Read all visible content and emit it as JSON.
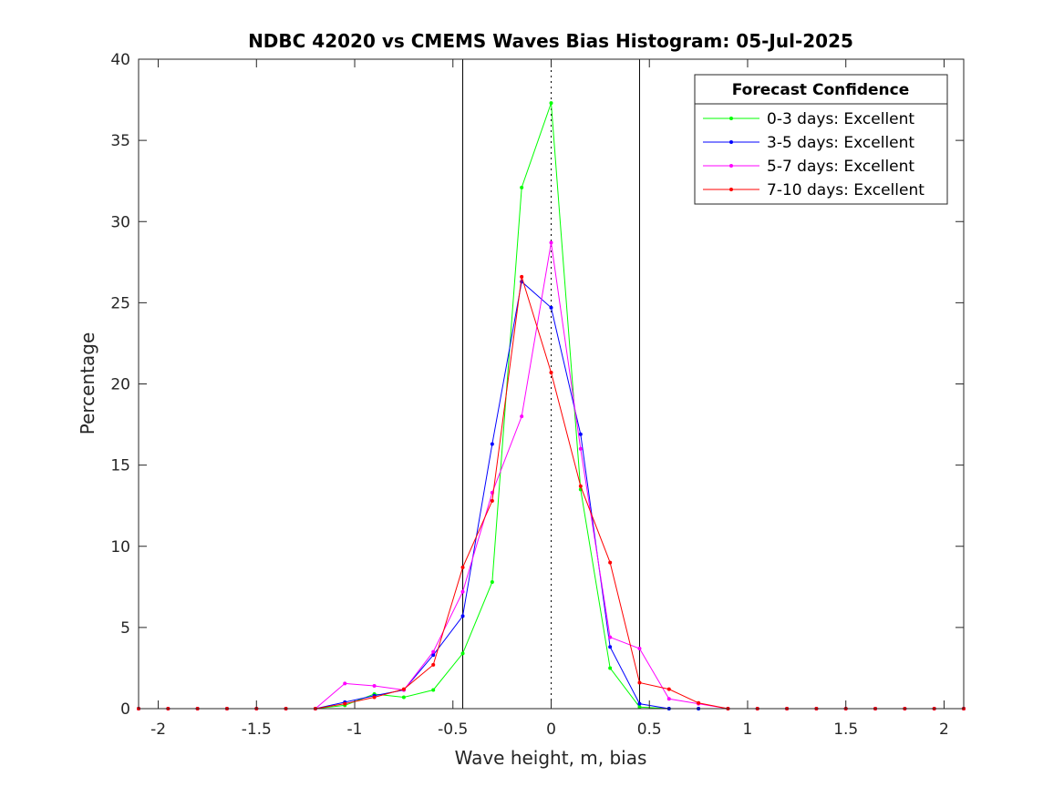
{
  "chart_data": {
    "type": "line",
    "title": "NDBC 42020 vs CMEMS Waves Bias Histogram: 05-Jul-2025",
    "xlabel": "Wave height, m, bias",
    "ylabel": "Percentage",
    "xlim": [
      -2.1,
      2.1
    ],
    "ylim": [
      0,
      40
    ],
    "xticks": [
      -2,
      -1.5,
      -1,
      -0.5,
      0,
      0.5,
      1,
      1.5,
      2
    ],
    "xtick_labels": [
      "-2",
      "-1.5",
      "-1",
      "-0.5",
      "0",
      "0.5",
      "1",
      "1.5",
      "2"
    ],
    "yticks": [
      0,
      5,
      10,
      15,
      20,
      25,
      30,
      35,
      40
    ],
    "ytick_labels": [
      "0",
      "5",
      "10",
      "15",
      "20",
      "25",
      "30",
      "35",
      "40"
    ],
    "grid": false,
    "legend": {
      "title": "Forecast Confidence",
      "location": "top-right"
    },
    "reference_lines": {
      "solid_x": [
        -0.45,
        0.45
      ],
      "dotted_x": [
        0
      ]
    },
    "x": [
      -2.1,
      -1.95,
      -1.8,
      -1.65,
      -1.5,
      -1.35,
      -1.2,
      -1.05,
      -0.9,
      -0.75,
      -0.6,
      -0.45,
      -0.3,
      -0.15,
      0,
      0.15,
      0.3,
      0.45,
      0.6,
      0.75,
      0.9,
      1.05,
      1.2,
      1.35,
      1.5,
      1.65,
      1.8,
      1.95,
      2.1
    ],
    "series": [
      {
        "name": "0-3 days: Excellent",
        "color": "#00ff00",
        "values": [
          0,
          0,
          0,
          0,
          0,
          0,
          0,
          0.2,
          0.9,
          0.7,
          1.15,
          3.4,
          7.8,
          32.1,
          37.3,
          13.5,
          2.5,
          0.1,
          0,
          0,
          0,
          0,
          0,
          0,
          0,
          0,
          0,
          0,
          0
        ]
      },
      {
        "name": "3-5 days: Excellent",
        "color": "#0000ff",
        "values": [
          0,
          0,
          0,
          0,
          0,
          0,
          0,
          0.4,
          0.8,
          1.15,
          3.3,
          5.7,
          16.3,
          26.3,
          24.7,
          16.9,
          3.8,
          0.3,
          0,
          0,
          0,
          0,
          0,
          0,
          0,
          0,
          0,
          0,
          0
        ]
      },
      {
        "name": "5-7 days: Excellent",
        "color": "#ff00ff",
        "values": [
          0,
          0,
          0,
          0,
          0,
          0,
          0,
          1.55,
          1.4,
          1.15,
          3.5,
          7.2,
          13.3,
          18.0,
          28.7,
          16.0,
          4.4,
          3.7,
          0.6,
          0.3,
          0,
          0,
          0,
          0,
          0,
          0,
          0,
          0,
          0
        ]
      },
      {
        "name": "7-10 days: Excellent",
        "color": "#ff0000",
        "values": [
          0,
          0,
          0,
          0,
          0,
          0,
          0,
          0.3,
          0.7,
          1.2,
          2.7,
          8.7,
          12.8,
          26.6,
          20.7,
          13.7,
          9.0,
          1.6,
          1.2,
          0.35,
          0,
          0,
          0,
          0,
          0,
          0,
          0,
          0,
          0
        ]
      }
    ]
  }
}
